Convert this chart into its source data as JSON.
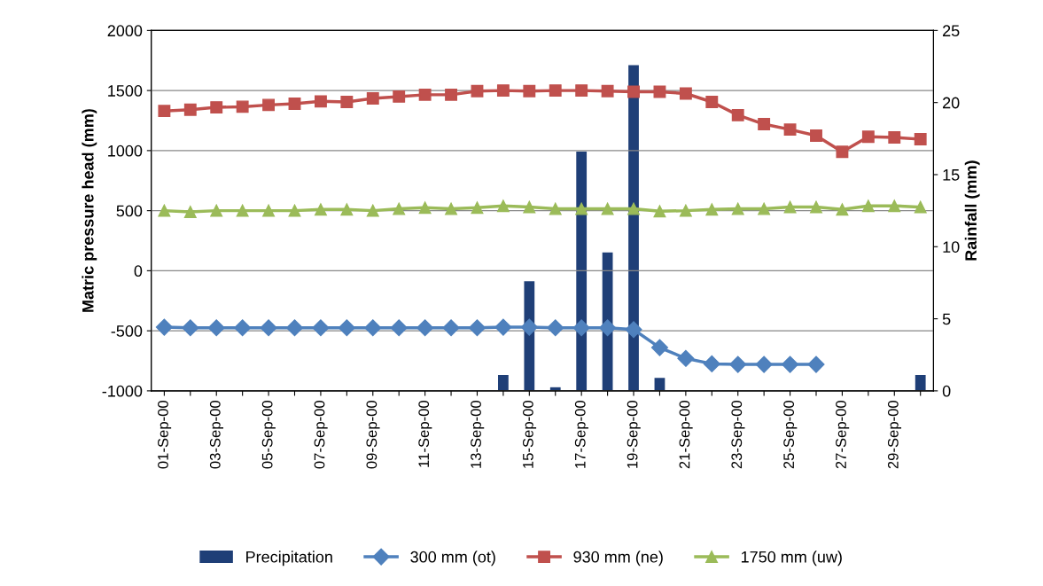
{
  "chart_data": {
    "type": "line",
    "ylabel": "Matric pressure head (mm)",
    "y2label": "Rainfall (mm)",
    "categories": [
      "01-Sep-00",
      null,
      "03-Sep-00",
      null,
      "05-Sep-00",
      null,
      "07-Sep-00",
      null,
      "09-Sep-00",
      null,
      "11-Sep-00",
      null,
      "13-Sep-00",
      null,
      "15-Sep-00",
      null,
      "17-Sep-00",
      null,
      "19-Sep-00",
      null,
      "21-Sep-00",
      null,
      "23-Sep-00",
      null,
      "25-Sep-00",
      null,
      "27-Sep-00",
      null,
      "29-Sep-00",
      null
    ],
    "series": [
      {
        "name": "Precipitation",
        "type": "bar",
        "axis": "y2",
        "color": "#1f3f77",
        "values": [
          0,
          0,
          0,
          0,
          0,
          0,
          0,
          0,
          0,
          0,
          0,
          0,
          0,
          1.1,
          7.6,
          0.25,
          16.6,
          9.6,
          22.6,
          0.9,
          0,
          0,
          0,
          0,
          0,
          0,
          0,
          0,
          0,
          1.1
        ]
      },
      {
        "name": "300 mm (ot)",
        "marker": "diamond",
        "color": "#4f81bd",
        "values": [
          -470,
          -475,
          -475,
          -475,
          -475,
          -475,
          -475,
          -475,
          -475,
          -475,
          -475,
          -475,
          -475,
          -470,
          -470,
          -475,
          -475,
          -475,
          -490,
          -640,
          -730,
          -775,
          -780,
          -780,
          -780,
          -780,
          null,
          null,
          null,
          null
        ]
      },
      {
        "name": "930 mm (ne)",
        "marker": "square",
        "color": "#c0504d",
        "values": [
          1330,
          1340,
          1360,
          1365,
          1380,
          1390,
          1410,
          1405,
          1435,
          1450,
          1465,
          1465,
          1495,
          1500,
          1495,
          1500,
          1500,
          1495,
          1490,
          1490,
          1475,
          1405,
          1295,
          1220,
          1175,
          1125,
          990,
          1115,
          1110,
          1095
        ]
      },
      {
        "name": "1750 mm (uw)",
        "marker": "triangle",
        "color": "#9bbb59",
        "values": [
          500,
          490,
          500,
          500,
          500,
          500,
          510,
          510,
          500,
          515,
          525,
          515,
          525,
          540,
          530,
          515,
          515,
          515,
          515,
          495,
          500,
          510,
          515,
          515,
          530,
          530,
          510,
          540,
          540,
          530
        ]
      }
    ],
    "ylim": [
      -1000,
      2000
    ],
    "yticks": [
      -1000,
      -500,
      0,
      500,
      1000,
      1500,
      2000
    ],
    "y2lim": [
      0,
      25
    ],
    "y2ticks": [
      0,
      5,
      10,
      15,
      20,
      25
    ],
    "grid": "y",
    "legend": "bottom",
    "line_style": "solid"
  }
}
